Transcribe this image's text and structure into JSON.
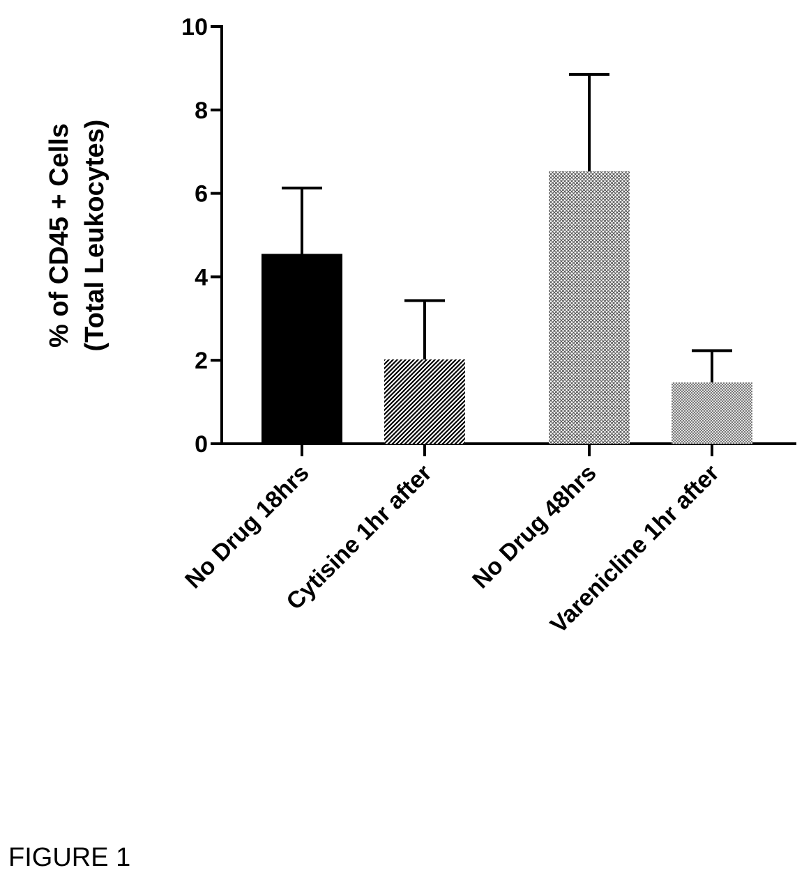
{
  "figure_caption": "FIGURE 1",
  "chart_data": {
    "type": "bar",
    "title": "",
    "xlabel": "",
    "ylabel_lines": [
      "% of CD45 + Cells",
      "(Total Leukocytes)"
    ],
    "ylim": [
      0,
      10
    ],
    "yticks": [
      "0",
      "2",
      "4",
      "6",
      "8",
      "10"
    ],
    "grid": false,
    "categories": [
      "No Drug 18hrs",
      "Cytisine 1hr after",
      "No Drug 48hrs",
      "Varenicline 1hr after"
    ],
    "values": [
      4.55,
      2.02,
      6.53,
      1.47
    ],
    "error_upper": [
      6.13,
      3.43,
      8.85,
      2.23
    ],
    "fills": [
      "solid-black",
      "diagonal-hatch",
      "fine-crosshatch",
      "light-crosshatch"
    ]
  }
}
